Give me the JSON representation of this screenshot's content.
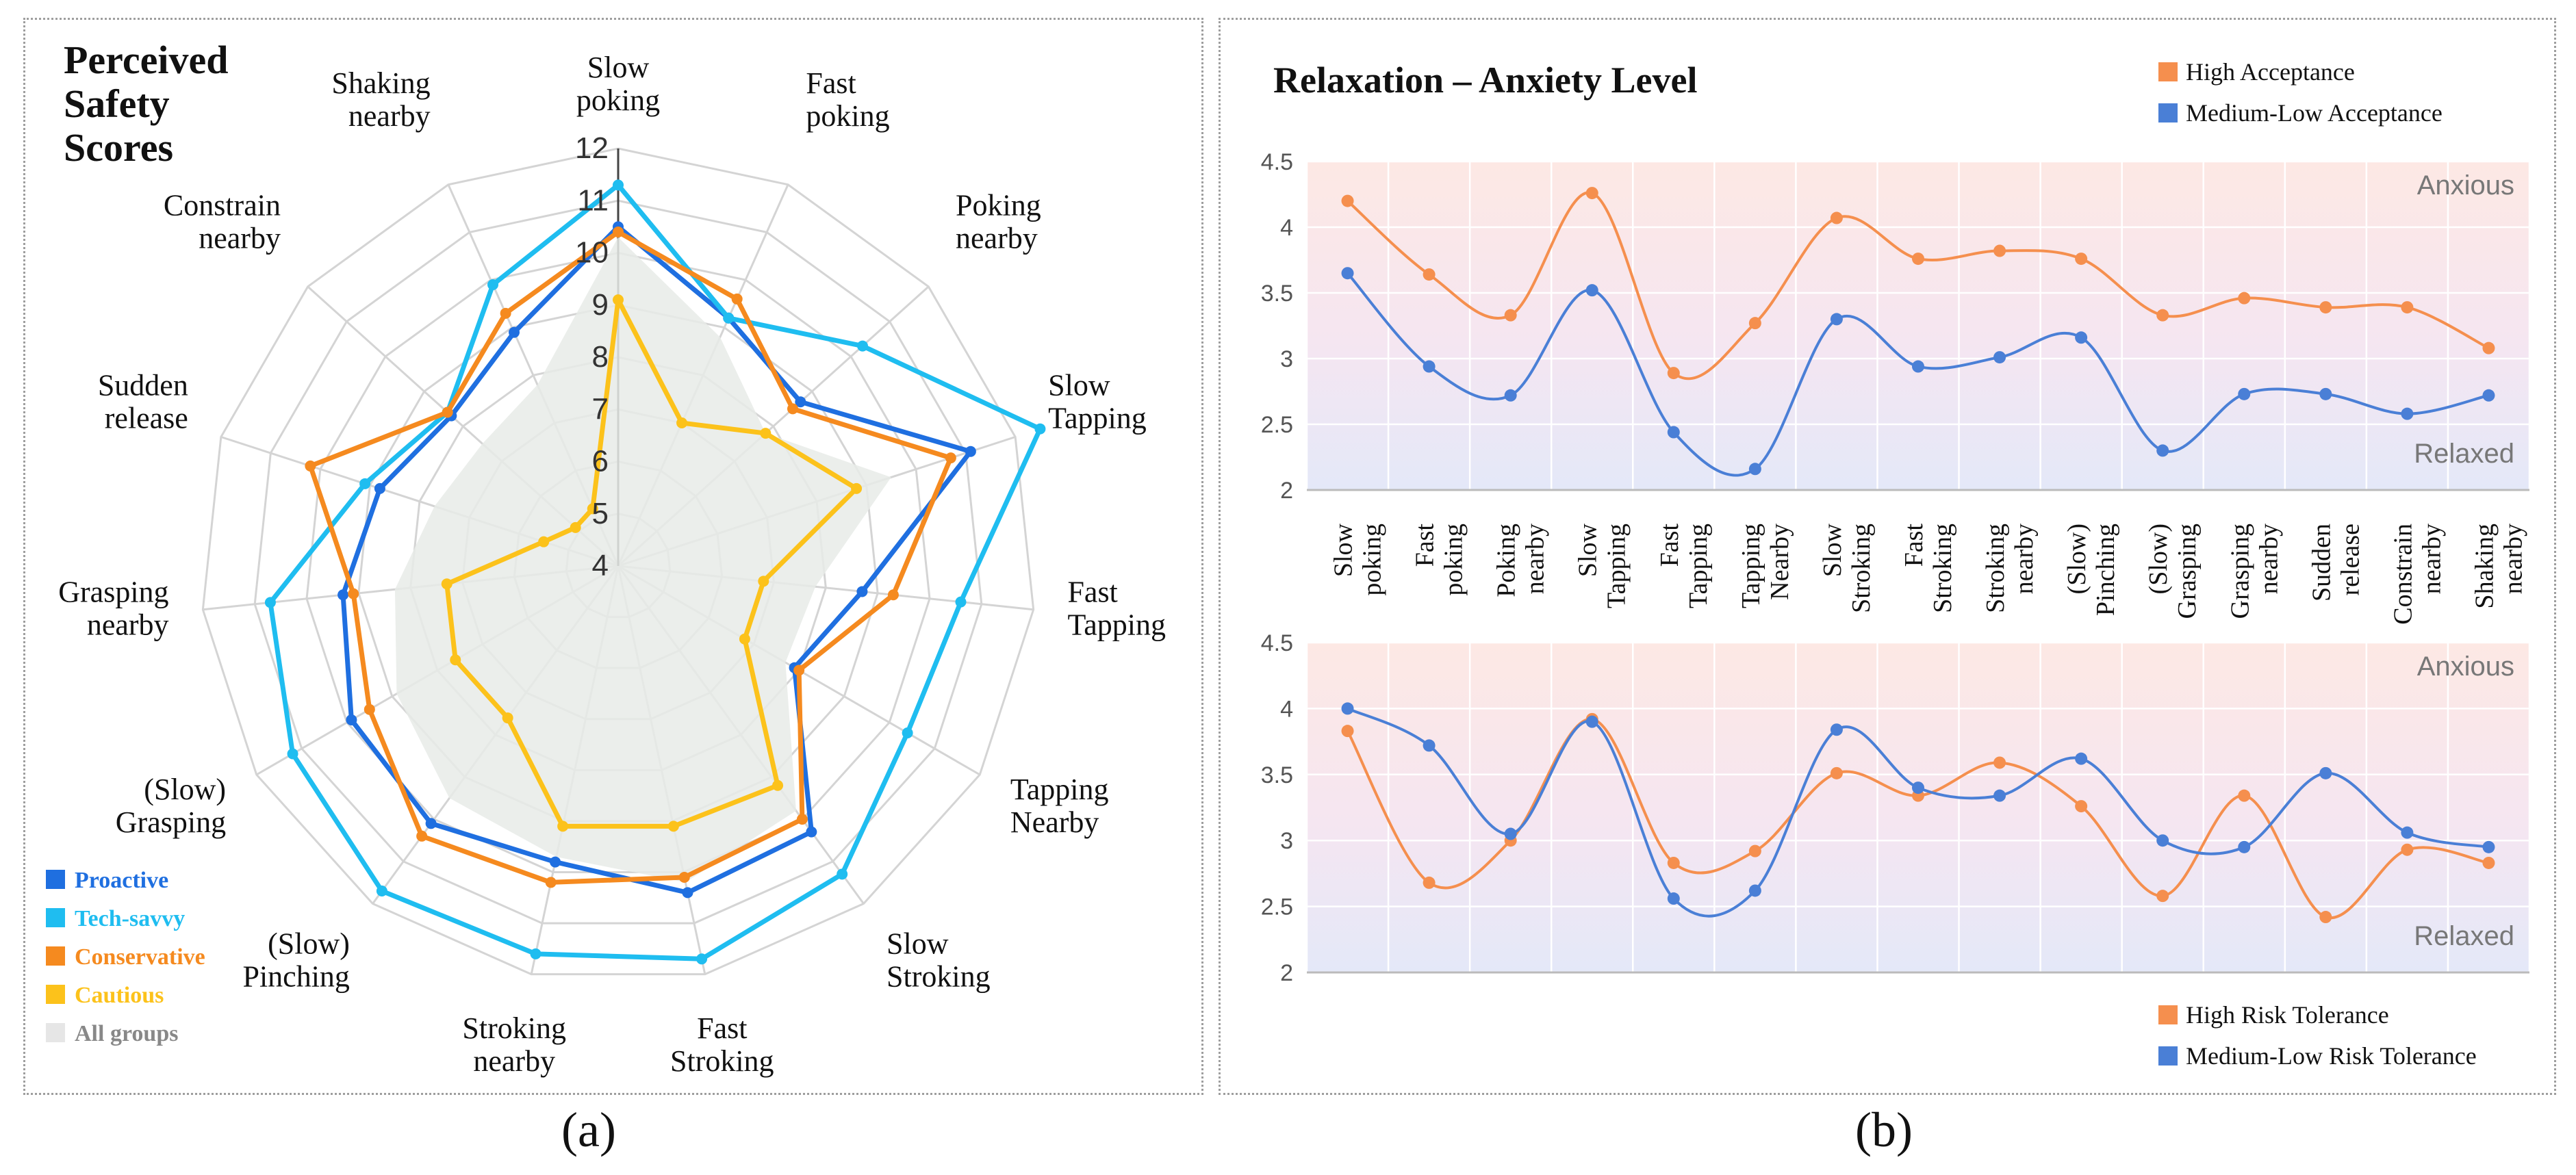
{
  "captions": {
    "a": "(a)",
    "b": "(b)"
  },
  "colors": {
    "proactive": "#1f6fe0",
    "techsavvy": "#1fbdf0",
    "conservative": "#f58a1f",
    "cautious": "#fcc21b",
    "allgroups": "#e6e6e6",
    "high": "#f58f4e",
    "medlow": "#4a7fd6"
  },
  "chart_data": [
    {
      "type": "radar",
      "title_lines": [
        "Perceived",
        "Safety",
        "Scores"
      ],
      "axes": [
        [
          "Slow",
          "poking"
        ],
        [
          "Fast",
          "poking"
        ],
        [
          "Poking",
          "nearby"
        ],
        [
          "Slow",
          "Tapping"
        ],
        [
          "Fast",
          "Tapping"
        ],
        [
          "Tapping",
          "Nearby"
        ],
        [
          "Slow",
          "Stroking"
        ],
        [
          "Fast",
          "Stroking"
        ],
        [
          "Stroking",
          "nearby"
        ],
        [
          "(Slow)",
          "Pinching"
        ],
        [
          "(Slow)",
          "Grasping"
        ],
        [
          "Grasping",
          "nearby"
        ],
        [
          "Sudden",
          "release"
        ],
        [
          "Constrain",
          "nearby"
        ],
        [
          "Shaking",
          "nearby"
        ]
      ],
      "rlim": [
        4,
        12
      ],
      "ticks": [
        4,
        5,
        6,
        7,
        8,
        9,
        10,
        11,
        12
      ],
      "series": [
        {
          "name": "All groups",
          "color_key": "allgroups",
          "values": [
            10.3,
            8.8,
            7.8,
            9.5,
            7.8,
            7.7,
            9.8,
            10.2,
            9.7,
            9.5,
            8.9,
            8.3,
            7.7,
            7.5,
            7.8
          ]
        },
        {
          "name": "Proactive",
          "color_key": "proactive",
          "values": [
            10.5,
            9.2,
            8.7,
            11.1,
            8.7,
            7.9,
            10.3,
            10.4,
            9.8,
            10.1,
            9.9,
            9.3,
            8.8,
            8.3,
            8.9
          ]
        },
        {
          "name": "Tech-savvy",
          "color_key": "techsavvy",
          "values": [
            11.3,
            9.2,
            10.3,
            12.5,
            10.6,
            10.4,
            11.3,
            11.7,
            11.6,
            11.7,
            11.2,
            10.7,
            9.1,
            8.4,
            9.9
          ]
        },
        {
          "name": "Conservative",
          "color_key": "conservative",
          "values": [
            10.4,
            9.6,
            8.5,
            10.7,
            9.3,
            8.0,
            10.0,
            10.1,
            10.2,
            10.4,
            9.5,
            9.1,
            10.2,
            8.4,
            9.3
          ]
        },
        {
          "name": "Cautious",
          "color_key": "cautious",
          "values": [
            9.1,
            7.0,
            7.8,
            8.8,
            6.8,
            6.8,
            9.2,
            9.1,
            9.1,
            7.6,
            7.6,
            7.3,
            5.5,
            5.1,
            5.2
          ]
        }
      ],
      "legend": [
        "Proactive",
        "Tech-savvy",
        "Conservative",
        "Cautious",
        "All groups"
      ]
    },
    {
      "type": "line",
      "title": "Relaxation – Anxiety Level",
      "categories": [
        [
          "Slow",
          "poking"
        ],
        [
          "Fast",
          "poking"
        ],
        [
          "Poking",
          "nearby"
        ],
        [
          "Slow",
          "Tapping"
        ],
        [
          "Fast",
          "Tapping"
        ],
        [
          "Tapping",
          "Nearby"
        ],
        [
          "Slow",
          "Stroking"
        ],
        [
          "Fast",
          "Stroking"
        ],
        [
          "Stroking",
          "nearby"
        ],
        [
          "(Slow)",
          "Pinching"
        ],
        [
          "(Slow)",
          "Grasping"
        ],
        [
          "Grasping",
          "nearby"
        ],
        [
          "Sudden",
          "release"
        ],
        [
          "Constrain",
          "nearby"
        ],
        [
          "Shaking",
          "nearby"
        ]
      ],
      "ylim": [
        2,
        4.5
      ],
      "yticks": [
        "2",
        "2.5",
        "3",
        "3.5",
        "4",
        "4.5"
      ],
      "band_labels": {
        "top": "Anxious",
        "bottom": "Relaxed"
      },
      "series": [
        {
          "name": "High Acceptance",
          "color_key": "high",
          "values": [
            4.2,
            3.64,
            3.33,
            4.26,
            2.89,
            3.27,
            4.07,
            3.76,
            3.82,
            3.76,
            3.33,
            3.46,
            3.39,
            3.39,
            3.08
          ]
        },
        {
          "name": "Medium-Low Acceptance",
          "color_key": "medlow",
          "values": [
            3.65,
            2.94,
            2.72,
            3.52,
            2.44,
            2.16,
            3.3,
            2.94,
            3.01,
            3.16,
            2.3,
            2.73,
            2.73,
            2.58,
            2.72
          ]
        }
      ]
    },
    {
      "type": "line",
      "categories_shared_with_previous": true,
      "ylim": [
        2,
        4.5
      ],
      "yticks": [
        "2",
        "2.5",
        "3",
        "3.5",
        "4",
        "4.5"
      ],
      "band_labels": {
        "top": "Anxious",
        "bottom": "Relaxed"
      },
      "series": [
        {
          "name": "High Risk Tolerance",
          "color_key": "high",
          "values": [
            3.83,
            2.68,
            3.0,
            3.92,
            2.83,
            2.92,
            3.51,
            3.34,
            3.59,
            3.26,
            2.58,
            3.34,
            2.42,
            2.93,
            2.83
          ]
        },
        {
          "name": "Medium-Low Risk Tolerance",
          "color_key": "medlow",
          "values": [
            4.0,
            3.72,
            3.05,
            3.9,
            2.56,
            2.62,
            3.84,
            3.4,
            3.34,
            3.62,
            3.0,
            2.95,
            3.51,
            3.06,
            2.95
          ]
        }
      ]
    }
  ]
}
